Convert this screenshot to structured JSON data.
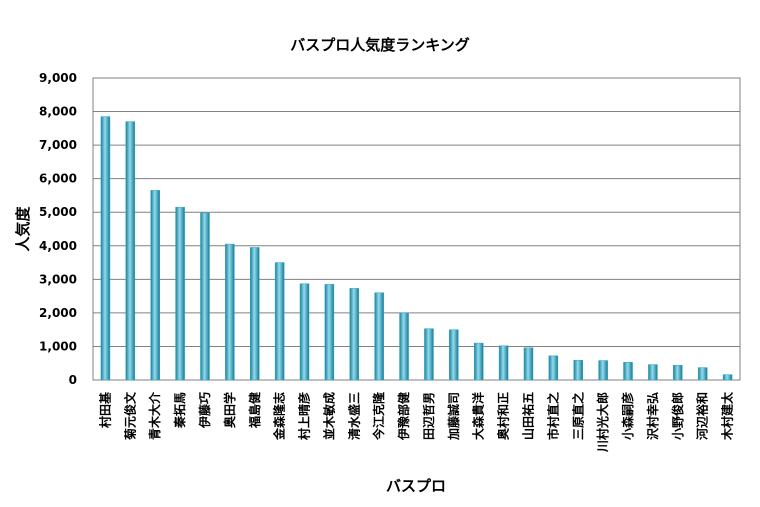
{
  "chart_data": {
    "type": "bar",
    "title": "バスプロ人気度ランキング",
    "xlabel": "バスプロ",
    "ylabel": "人気度",
    "ylim": [
      0,
      9000
    ],
    "yticks": [
      "0",
      "1,000",
      "2,000",
      "3,000",
      "4,000",
      "5,000",
      "6,000",
      "7,000",
      "8,000",
      "9,000"
    ],
    "grid": true,
    "legend": "none",
    "bar_color": "#2fa6c4",
    "categories": [
      "村田基",
      "菊元俊文",
      "青木大介",
      "秦拓馬",
      "伊藤巧",
      "奥田学",
      "福島健",
      "金森隆志",
      "村上晴彦",
      "並木敏成",
      "清水盛三",
      "今江克隆",
      "伊豫部健",
      "田辺哲男",
      "加藤誠司",
      "大森貴洋",
      "奥村和正",
      "山田祐五",
      "市村直之",
      "三原直之",
      "川村光大郎",
      "小森嗣彦",
      "沢村幸弘",
      "小野俊郎",
      "河辺裕和",
      "木村建太"
    ],
    "values": [
      7850,
      7700,
      5650,
      5150,
      4980,
      4050,
      3950,
      3500,
      2870,
      2850,
      2730,
      2600,
      2000,
      1530,
      1500,
      1100,
      1020,
      960,
      720,
      590,
      580,
      530,
      460,
      440,
      370,
      160
    ]
  }
}
